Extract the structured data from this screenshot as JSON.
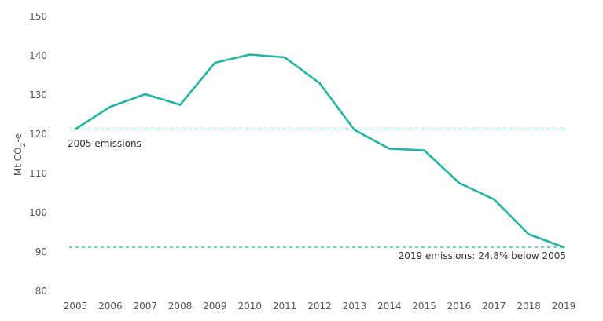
{
  "chart_data": {
    "type": "line",
    "title": "",
    "xlabel": "",
    "ylabel_main": "Mt CO",
    "ylabel_sub": "2",
    "ylabel_suffix": "-e",
    "x": [
      "2005",
      "2006",
      "2007",
      "2008",
      "2009",
      "2010",
      "2011",
      "2012",
      "2013",
      "2014",
      "2015",
      "2016",
      "2017",
      "2018",
      "2019"
    ],
    "series": [
      {
        "color": "#1fb5a6",
        "values": [
          121.3,
          127.0,
          130.2,
          127.5,
          138.2,
          140.3,
          139.6,
          133.0,
          121.1,
          116.3,
          115.9,
          107.6,
          103.4,
          94.5,
          91.2
        ]
      }
    ],
    "yticks": [
      80,
      90,
      100,
      110,
      120,
      130,
      140,
      150
    ],
    "ylim": [
      80,
      150
    ],
    "grid": false,
    "reference_lines": [
      {
        "value": 121.3,
        "label": "2005 emissions",
        "color": "#1fb5a6"
      },
      {
        "value": 91.2,
        "label": "2019 emissions: 24.8% below 2005",
        "color": "#1fb5a6"
      }
    ]
  }
}
